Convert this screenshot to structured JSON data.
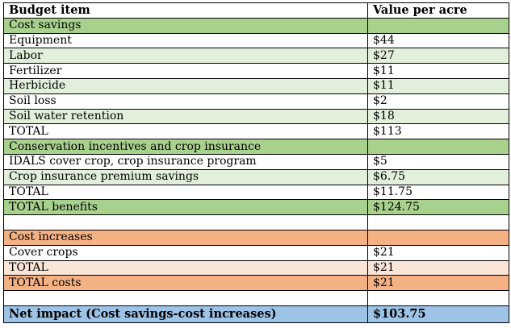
{
  "header": {
    "item": "Budget item",
    "value": "Value per acre"
  },
  "rows": [
    {
      "item": "Cost savings",
      "value": "",
      "style": "green",
      "indent": false
    },
    {
      "item": "Equipment",
      "value": "$44",
      "style": "white",
      "indent": true
    },
    {
      "item": "Labor",
      "value": "$27",
      "style": "lightgreen",
      "indent": true
    },
    {
      "item": "Fertilizer",
      "value": "$11",
      "style": "white",
      "indent": true
    },
    {
      "item": "Herbicide",
      "value": "$11",
      "style": "lightgreen",
      "indent": true
    },
    {
      "item": "Soil loss",
      "value": "$2",
      "style": "white",
      "indent": true
    },
    {
      "item": "Soil water retention",
      "value": "$18",
      "style": "lightgreen",
      "indent": true
    },
    {
      "item": "TOTAL",
      "value": "$113",
      "style": "white",
      "indent": true
    },
    {
      "item": "Conservation incentives and crop insurance",
      "value": "",
      "style": "green",
      "indent": false
    },
    {
      "item": "IDALS cover crop, crop insurance program",
      "value": "$5",
      "style": "white",
      "indent": true
    },
    {
      "item": "Crop insurance premium savings",
      "value": "$6.75",
      "style": "lightgreen",
      "indent": true
    },
    {
      "item": "TOTAL",
      "value": "$11.75",
      "style": "white",
      "indent": true
    },
    {
      "item": "TOTAL benefits",
      "value": "$124.75",
      "style": "green",
      "indent": false
    },
    {
      "item": "",
      "value": "",
      "style": "white",
      "indent": false
    },
    {
      "item": "Cost increases",
      "value": "",
      "style": "orange",
      "indent": false
    },
    {
      "item": "Cover crops",
      "value": "$21",
      "style": "white",
      "indent": true
    },
    {
      "item": "TOTAL",
      "value": "$21",
      "style": "lightorange",
      "indent": true
    },
    {
      "item": "TOTAL costs",
      "value": "$21",
      "style": "orange",
      "indent": false
    },
    {
      "item": "",
      "value": "",
      "style": "white",
      "indent": false
    },
    {
      "item": "Net impact (Cost savings-cost increases)",
      "value": "$103.75",
      "style": "blue",
      "indent": false
    }
  ]
}
